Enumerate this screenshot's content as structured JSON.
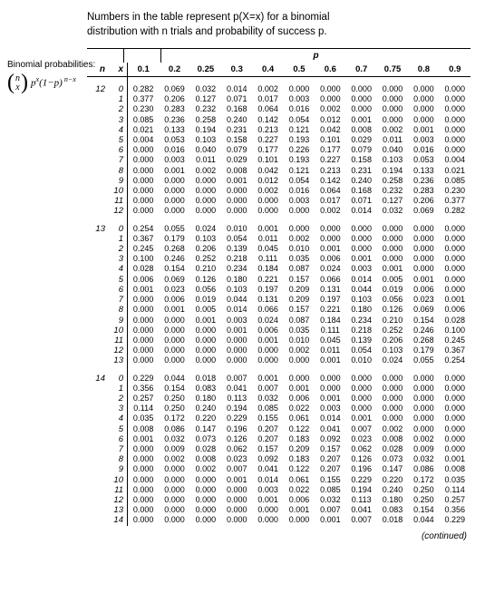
{
  "header": {
    "top_line": "Numbers in the table represent p(X=x) for a binomial",
    "top_line2": "distribution with n trials and probability of success p."
  },
  "left": {
    "title": "Binomial probabilities:"
  },
  "table": {
    "p_label": "p",
    "col_n": "n",
    "col_x": "x",
    "p_values": [
      "0.1",
      "0.2",
      "0.25",
      "0.3",
      "0.4",
      "0.5",
      "0.6",
      "0.7",
      "0.75",
      "0.8",
      "0.9"
    ],
    "blocks": [
      {
        "n": "12",
        "rows": [
          [
            "0.282",
            "0.069",
            "0.032",
            "0.014",
            "0.002",
            "0.000",
            "0.000",
            "0.000",
            "0.000",
            "0.000",
            "0.000"
          ],
          [
            "0.377",
            "0.206",
            "0.127",
            "0.071",
            "0.017",
            "0.003",
            "0.000",
            "0.000",
            "0.000",
            "0.000",
            "0.000"
          ],
          [
            "0.230",
            "0.283",
            "0.232",
            "0.168",
            "0.064",
            "0.016",
            "0.002",
            "0.000",
            "0.000",
            "0.000",
            "0.000"
          ],
          [
            "0.085",
            "0.236",
            "0.258",
            "0.240",
            "0.142",
            "0.054",
            "0.012",
            "0.001",
            "0.000",
            "0.000",
            "0.000"
          ],
          [
            "0.021",
            "0.133",
            "0.194",
            "0.231",
            "0.213",
            "0.121",
            "0.042",
            "0.008",
            "0.002",
            "0.001",
            "0.000"
          ],
          [
            "0.004",
            "0.053",
            "0.103",
            "0.158",
            "0.227",
            "0.193",
            "0.101",
            "0.029",
            "0.011",
            "0.003",
            "0.000"
          ],
          [
            "0.000",
            "0.016",
            "0.040",
            "0.079",
            "0.177",
            "0.226",
            "0.177",
            "0.079",
            "0.040",
            "0.016",
            "0.000"
          ],
          [
            "0.000",
            "0.003",
            "0.011",
            "0.029",
            "0.101",
            "0.193",
            "0.227",
            "0.158",
            "0.103",
            "0.053",
            "0.004"
          ],
          [
            "0.000",
            "0.001",
            "0.002",
            "0.008",
            "0.042",
            "0.121",
            "0.213",
            "0.231",
            "0.194",
            "0.133",
            "0.021"
          ],
          [
            "0.000",
            "0.000",
            "0.000",
            "0.001",
            "0.012",
            "0.054",
            "0.142",
            "0.240",
            "0.258",
            "0.236",
            "0.085"
          ],
          [
            "0.000",
            "0.000",
            "0.000",
            "0.000",
            "0.002",
            "0.016",
            "0.064",
            "0.168",
            "0.232",
            "0.283",
            "0.230"
          ],
          [
            "0.000",
            "0.000",
            "0.000",
            "0.000",
            "0.000",
            "0.003",
            "0.017",
            "0.071",
            "0.127",
            "0.206",
            "0.377"
          ],
          [
            "0.000",
            "0.000",
            "0.000",
            "0.000",
            "0.000",
            "0.000",
            "0.002",
            "0.014",
            "0.032",
            "0.069",
            "0.282"
          ]
        ]
      },
      {
        "n": "13",
        "rows": [
          [
            "0.254",
            "0.055",
            "0.024",
            "0.010",
            "0.001",
            "0.000",
            "0.000",
            "0.000",
            "0.000",
            "0.000",
            "0.000"
          ],
          [
            "0.367",
            "0.179",
            "0.103",
            "0.054",
            "0.011",
            "0.002",
            "0.000",
            "0.000",
            "0.000",
            "0.000",
            "0.000"
          ],
          [
            "0.245",
            "0.268",
            "0.206",
            "0.139",
            "0.045",
            "0.010",
            "0.001",
            "0.000",
            "0.000",
            "0.000",
            "0.000"
          ],
          [
            "0.100",
            "0.246",
            "0.252",
            "0.218",
            "0.111",
            "0.035",
            "0.006",
            "0.001",
            "0.000",
            "0.000",
            "0.000"
          ],
          [
            "0.028",
            "0.154",
            "0.210",
            "0.234",
            "0.184",
            "0.087",
            "0.024",
            "0.003",
            "0.001",
            "0.000",
            "0.000"
          ],
          [
            "0.006",
            "0.069",
            "0.126",
            "0.180",
            "0.221",
            "0.157",
            "0.066",
            "0.014",
            "0.005",
            "0.001",
            "0.000"
          ],
          [
            "0.001",
            "0.023",
            "0.056",
            "0.103",
            "0.197",
            "0.209",
            "0.131",
            "0.044",
            "0.019",
            "0.006",
            "0.000"
          ],
          [
            "0.000",
            "0.006",
            "0.019",
            "0.044",
            "0.131",
            "0.209",
            "0.197",
            "0.103",
            "0.056",
            "0.023",
            "0.001"
          ],
          [
            "0.000",
            "0.001",
            "0.005",
            "0.014",
            "0.066",
            "0.157",
            "0.221",
            "0.180",
            "0.126",
            "0.069",
            "0.006"
          ],
          [
            "0.000",
            "0.000",
            "0.001",
            "0.003",
            "0.024",
            "0.087",
            "0.184",
            "0.234",
            "0.210",
            "0.154",
            "0.028"
          ],
          [
            "0.000",
            "0.000",
            "0.000",
            "0.001",
            "0.006",
            "0.035",
            "0.111",
            "0.218",
            "0.252",
            "0.246",
            "0.100"
          ],
          [
            "0.000",
            "0.000",
            "0.000",
            "0.000",
            "0.001",
            "0.010",
            "0.045",
            "0.139",
            "0.206",
            "0.268",
            "0.245"
          ],
          [
            "0.000",
            "0.000",
            "0.000",
            "0.000",
            "0.000",
            "0.002",
            "0.011",
            "0.054",
            "0.103",
            "0.179",
            "0.367"
          ],
          [
            "0.000",
            "0.000",
            "0.000",
            "0.000",
            "0.000",
            "0.000",
            "0.001",
            "0.010",
            "0.024",
            "0.055",
            "0.254"
          ]
        ]
      },
      {
        "n": "14",
        "rows": [
          [
            "0.229",
            "0.044",
            "0.018",
            "0.007",
            "0.001",
            "0.000",
            "0.000",
            "0.000",
            "0.000",
            "0.000",
            "0.000"
          ],
          [
            "0.356",
            "0.154",
            "0.083",
            "0.041",
            "0.007",
            "0.001",
            "0.000",
            "0.000",
            "0.000",
            "0.000",
            "0.000"
          ],
          [
            "0.257",
            "0.250",
            "0.180",
            "0.113",
            "0.032",
            "0.006",
            "0.001",
            "0.000",
            "0.000",
            "0.000",
            "0.000"
          ],
          [
            "0.114",
            "0.250",
            "0.240",
            "0.194",
            "0.085",
            "0.022",
            "0.003",
            "0.000",
            "0.000",
            "0.000",
            "0.000"
          ],
          [
            "0.035",
            "0.172",
            "0.220",
            "0.229",
            "0.155",
            "0.061",
            "0.014",
            "0.001",
            "0.000",
            "0.000",
            "0.000"
          ],
          [
            "0.008",
            "0.086",
            "0.147",
            "0.196",
            "0.207",
            "0.122",
            "0.041",
            "0.007",
            "0.002",
            "0.000",
            "0.000"
          ],
          [
            "0.001",
            "0.032",
            "0.073",
            "0.126",
            "0.207",
            "0.183",
            "0.092",
            "0.023",
            "0.008",
            "0.002",
            "0.000"
          ],
          [
            "0.000",
            "0.009",
            "0.028",
            "0.062",
            "0.157",
            "0.209",
            "0.157",
            "0.062",
            "0.028",
            "0.009",
            "0.000"
          ],
          [
            "0.000",
            "0.002",
            "0.008",
            "0.023",
            "0.092",
            "0.183",
            "0.207",
            "0.126",
            "0.073",
            "0.032",
            "0.001"
          ],
          [
            "0.000",
            "0.000",
            "0.002",
            "0.007",
            "0.041",
            "0.122",
            "0.207",
            "0.196",
            "0.147",
            "0.086",
            "0.008"
          ],
          [
            "0.000",
            "0.000",
            "0.000",
            "0.001",
            "0.014",
            "0.061",
            "0.155",
            "0.229",
            "0.220",
            "0.172",
            "0.035"
          ],
          [
            "0.000",
            "0.000",
            "0.000",
            "0.000",
            "0.003",
            "0.022",
            "0.085",
            "0.194",
            "0.240",
            "0.250",
            "0.114"
          ],
          [
            "0.000",
            "0.000",
            "0.000",
            "0.000",
            "0.001",
            "0.006",
            "0.032",
            "0.113",
            "0.180",
            "0.250",
            "0.257"
          ],
          [
            "0.000",
            "0.000",
            "0.000",
            "0.000",
            "0.000",
            "0.001",
            "0.007",
            "0.041",
            "0.083",
            "0.154",
            "0.356"
          ],
          [
            "0.000",
            "0.000",
            "0.000",
            "0.000",
            "0.000",
            "0.000",
            "0.001",
            "0.007",
            "0.018",
            "0.044",
            "0.229"
          ]
        ]
      }
    ]
  },
  "footer": {
    "continued": "(continued)"
  }
}
